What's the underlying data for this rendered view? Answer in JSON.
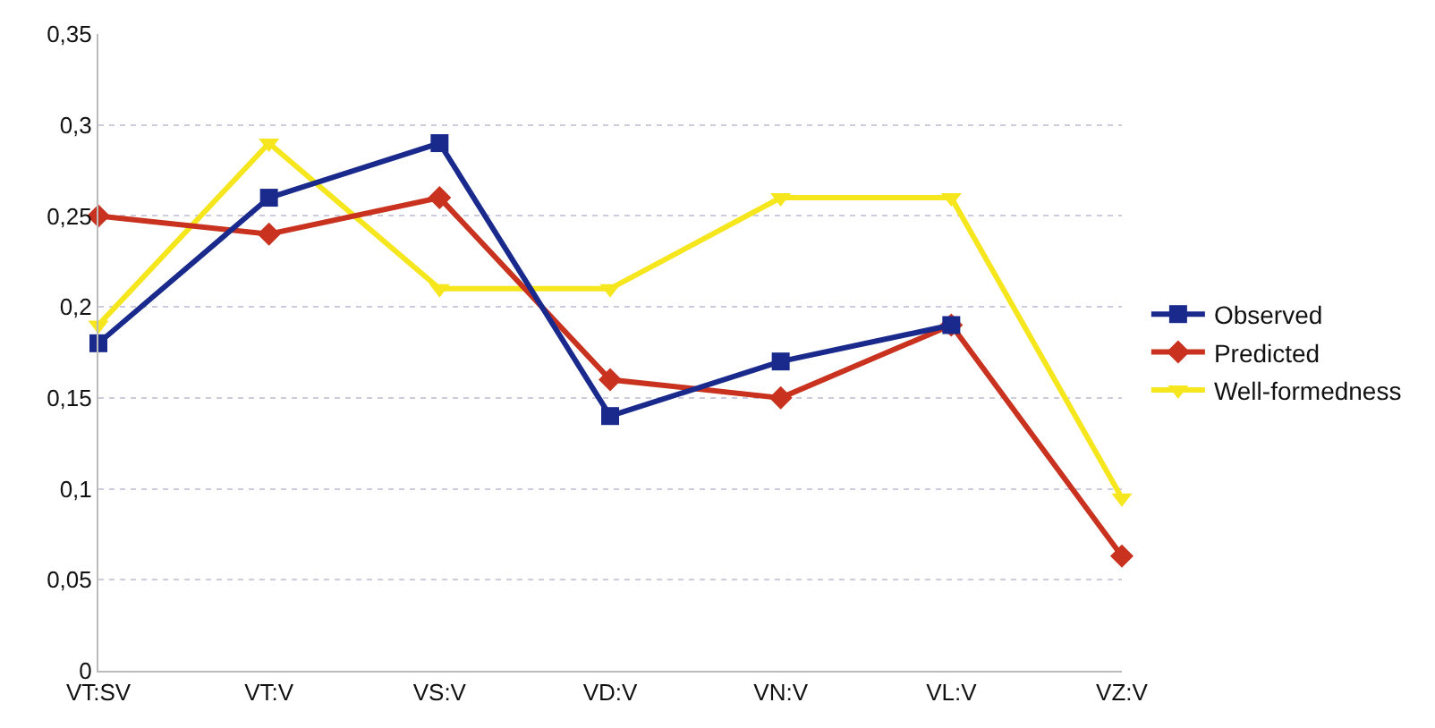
{
  "chart_data": {
    "type": "line",
    "categories": [
      "VT:SV",
      "VT:V",
      "VS:V",
      "VD:V",
      "VN:V",
      "VL:V",
      "VZ:V"
    ],
    "series": [
      {
        "name": "Observed",
        "color": "#1a2a8c",
        "marker": "square",
        "values": [
          0.18,
          0.26,
          0.29,
          0.14,
          0.17,
          0.19,
          null
        ]
      },
      {
        "name": "Predicted",
        "color": "#c8321e",
        "marker": "diamond",
        "values": [
          0.25,
          0.24,
          0.26,
          0.16,
          0.15,
          0.19,
          0.063
        ]
      },
      {
        "name": "Well-formedness",
        "color": "#f5e61e",
        "marker": "triangle",
        "values": [
          0.19,
          0.29,
          0.21,
          0.21,
          0.26,
          0.26,
          0.095
        ]
      }
    ],
    "ylim": [
      0,
      0.35
    ],
    "yticks": [
      {
        "value": 0,
        "label": "0"
      },
      {
        "value": 0.05,
        "label": "0,05"
      },
      {
        "value": 0.1,
        "label": "0,1"
      },
      {
        "value": 0.15,
        "label": "0,15"
      },
      {
        "value": 0.2,
        "label": "0,2"
      },
      {
        "value": 0.25,
        "label": "0,25"
      },
      {
        "value": 0.3,
        "label": "0,3"
      },
      {
        "value": 0.35,
        "label": "0,35"
      }
    ],
    "grid": "y",
    "legend": "right",
    "line_style": "solid"
  }
}
